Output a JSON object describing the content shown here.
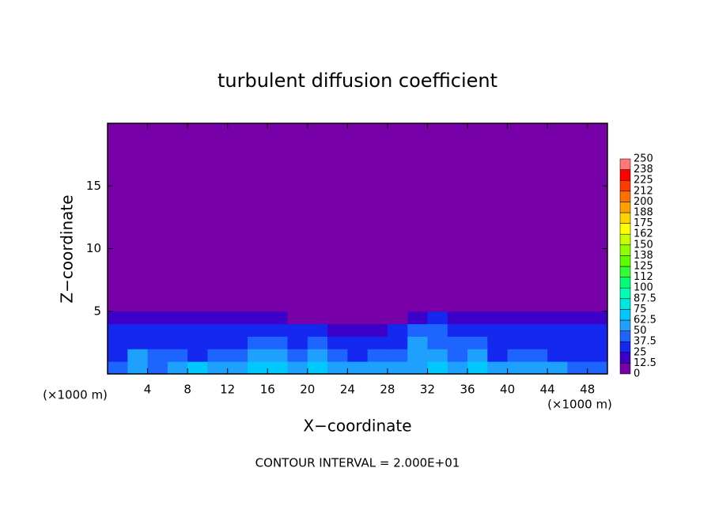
{
  "chart_data": {
    "type": "heatmap",
    "title": "turbulent diffusion coefficient",
    "subtitle": "CONTOUR INTERVAL = 2.000E+01",
    "x_label": "X−coordinate",
    "y_label": "Z−coordinate",
    "x_unit_label": "(×1000 m)",
    "x_unit_label_right": "(×1000 m)",
    "xlim": [
      0,
      50
    ],
    "ylim": [
      0,
      20
    ],
    "xticks": [
      4,
      8,
      12,
      16,
      20,
      24,
      28,
      32,
      36,
      40,
      44,
      48
    ],
    "yticks": [
      5,
      10,
      15
    ],
    "x": [
      1,
      3,
      5,
      7,
      9,
      11,
      13,
      15,
      17,
      19,
      21,
      23,
      25,
      27,
      29,
      31,
      33,
      35,
      37,
      39,
      41,
      43,
      45,
      47,
      49
    ],
    "y": [
      0.5,
      1.5,
      2.5,
      3.5,
      4.5,
      5.5
    ],
    "z": [
      [
        40,
        55,
        45,
        60,
        65,
        55,
        60,
        70,
        65,
        55,
        70,
        60,
        55,
        50,
        55,
        60,
        65,
        55,
        70,
        50,
        60,
        55,
        50,
        45,
        40
      ],
      [
        30,
        50,
        40,
        45,
        35,
        40,
        45,
        55,
        50,
        45,
        60,
        40,
        35,
        40,
        45,
        50,
        55,
        45,
        55,
        35,
        45,
        40,
        35,
        35,
        30
      ],
      [
        30,
        35,
        35,
        30,
        30,
        30,
        35,
        40,
        40,
        35,
        45,
        30,
        25,
        30,
        35,
        50,
        45,
        40,
        40,
        30,
        35,
        30,
        30,
        30,
        25
      ],
      [
        25,
        30,
        30,
        25,
        25,
        25,
        25,
        30,
        30,
        25,
        30,
        20,
        15,
        20,
        25,
        40,
        40,
        30,
        30,
        25,
        30,
        25,
        25,
        25,
        25
      ],
      [
        20,
        20,
        20,
        20,
        20,
        15,
        15,
        15,
        15,
        10,
        10,
        5,
        5,
        5,
        10,
        20,
        25,
        20,
        15,
        15,
        20,
        20,
        20,
        20,
        20
      ],
      [
        10,
        5,
        5,
        5,
        0,
        0,
        0,
        0,
        0,
        0,
        0,
        0,
        0,
        0,
        0,
        0,
        5,
        5,
        5,
        5,
        0,
        10,
        10,
        10,
        10
      ]
    ],
    "colorbar": {
      "levels": [
        0,
        12.5,
        25,
        37.5,
        50,
        62.5,
        75,
        87.5,
        100,
        {
          "value": 112.5,
          "label": "112"
        },
        125,
        {
          "value": 137.5,
          "label": "138"
        },
        150,
        {
          "value": 162.5,
          "label": "162"
        },
        175,
        {
          "value": 187.5,
          "label": "188"
        },
        200,
        {
          "value": 212.5,
          "label": "212"
        },
        225,
        {
          "value": 237.5,
          "label": "238"
        },
        250
      ],
      "colors": [
        "#7800a8",
        "#3c00c8",
        "#1428f0",
        "#1e64ff",
        "#1ea0ff",
        "#00c8ff",
        "#00e6e0",
        "#00ffb4",
        "#00ff78",
        "#30ff30",
        "#60ff00",
        "#90ff00",
        "#c8ff00",
        "#ffff00",
        "#ffd200",
        "#ffa000",
        "#ff7000",
        "#ff3c00",
        "#ff0000",
        "#ff7878"
      ]
    }
  }
}
